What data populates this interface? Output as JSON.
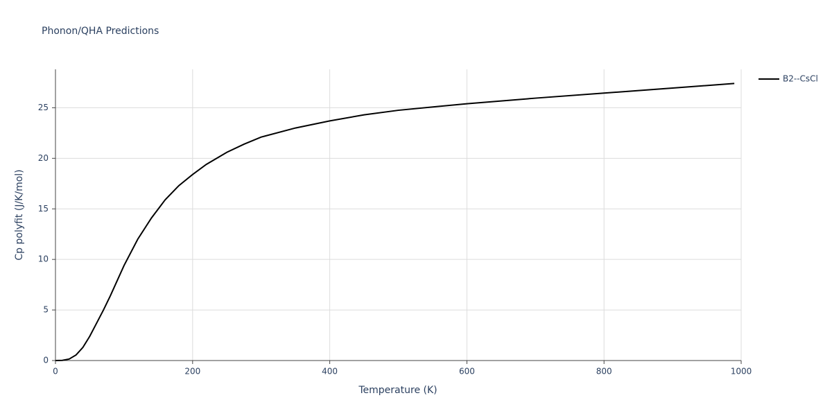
{
  "chart_data": {
    "type": "line",
    "title": "Phonon/QHA Predictions",
    "x_label": "Temperature (K)",
    "y_label": "Cp polyfit (J/K/mol)",
    "x": [
      0,
      10,
      20,
      30,
      40,
      50,
      60,
      70,
      80,
      90,
      100,
      120,
      140,
      160,
      180,
      200,
      220,
      250,
      275,
      300,
      350,
      400,
      450,
      500,
      600,
      700,
      800,
      900,
      990
    ],
    "series": [
      {
        "name": "B2--CsCl",
        "color": "#000000",
        "values": [
          0,
          0.02,
          0.15,
          0.55,
          1.3,
          2.4,
          3.7,
          5.0,
          6.4,
          7.9,
          9.4,
          12.0,
          14.1,
          15.9,
          17.3,
          18.4,
          19.4,
          20.6,
          21.4,
          22.1,
          23.0,
          23.7,
          24.3,
          24.75,
          25.4,
          25.95,
          26.45,
          26.95,
          27.4
        ]
      }
    ],
    "xlim": [
      0,
      1000
    ],
    "xticks": [
      0,
      200,
      400,
      600,
      800,
      1000
    ],
    "ylim": [
      0,
      28.8
    ],
    "yticks": [
      0,
      5,
      10,
      15,
      20,
      25
    ],
    "grid": true,
    "legend": "top-right"
  }
}
